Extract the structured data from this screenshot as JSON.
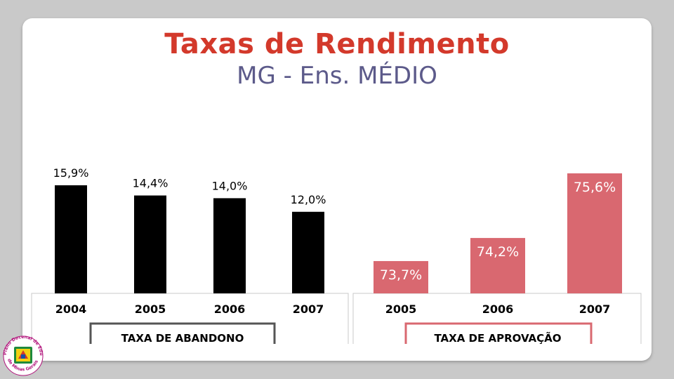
{
  "slide": {
    "title": "Taxas de Rendimento",
    "subtitle": "MG - Ens. MÉDIO"
  },
  "logo": {
    "ring_text_top": "Plano Decenal de Educação",
    "ring_text_bottom": "de Minas Gerais"
  },
  "colors": {
    "abandono_bar": "#000000",
    "aprovacao_bar": "#d96870",
    "aprovacao_label": "#ffffff",
    "title": "#d3392b",
    "subtitle": "#5c5a8a",
    "panel_border": "#c8c8c8",
    "abandono_box": "#555555",
    "aprovacao_box": "#d96870"
  },
  "chart_data": [
    {
      "type": "bar",
      "categories": [
        "2004",
        "2005",
        "2006",
        "2007"
      ],
      "values": [
        15.9,
        14.4,
        14.0,
        12.0
      ],
      "data_labels": [
        "15,9%",
        "14,4%",
        "14,0%",
        "12,0%"
      ],
      "xlabel": "TAXA DE ABANDONO",
      "ylabel": "",
      "ylim": [
        0,
        17
      ],
      "grid": false,
      "label_position": "above"
    },
    {
      "type": "bar",
      "categories": [
        "2005",
        "2006",
        "2007"
      ],
      "values": [
        73.7,
        74.2,
        75.6
      ],
      "data_labels": [
        "73,7%",
        "74,2%",
        "75,6%"
      ],
      "xlabel": "TAXA DE APROVAÇÃO",
      "ylabel": "",
      "ylim": [
        73.0,
        75.9
      ],
      "grid": false,
      "label_position": "inside-top"
    }
  ]
}
